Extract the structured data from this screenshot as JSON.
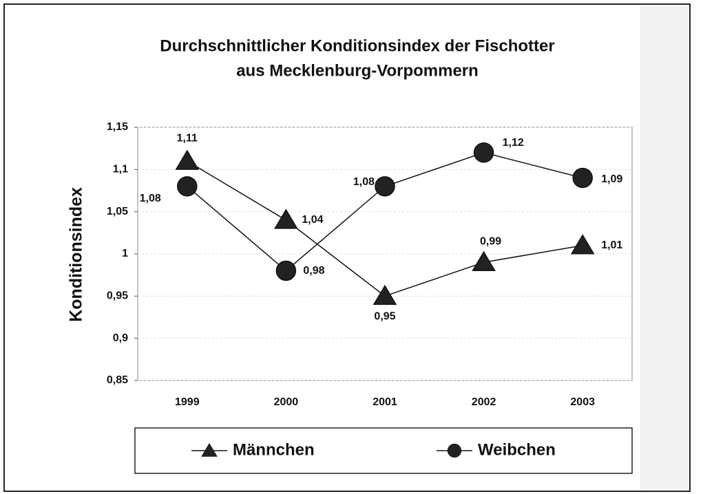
{
  "chart_data": {
    "type": "line",
    "title": [
      "Durchschnittlicher Konditionsindex der Fischotter",
      "aus Mecklenburg-Vorpommern"
    ],
    "y_label": "Konditionsindex",
    "categories": [
      "1999",
      "2000",
      "2001",
      "2002",
      "2003"
    ],
    "series": [
      {
        "name": "Männchen",
        "color": "#111111",
        "marker": "triangle",
        "values": [
          1.11,
          1.04,
          0.95,
          0.99,
          1.01
        ],
        "value_labels": [
          "1,11",
          "1,04",
          "0,95",
          "0,99",
          "1,01"
        ]
      },
      {
        "name": "Weibchen",
        "color": "#111111",
        "marker": "circle",
        "values": [
          1.08,
          0.98,
          1.08,
          1.12,
          1.09
        ],
        "value_labels": [
          "1,08",
          "0,98",
          "1,08",
          "1,12",
          "1,09"
        ]
      }
    ],
    "ylim": [
      0.85,
      1.15
    ],
    "yticks": [
      {
        "value": 0.85,
        "label": "0,85"
      },
      {
        "value": 0.9,
        "label": "0,9"
      },
      {
        "value": 0.95,
        "label": "0,95"
      },
      1,
      {
        "value": 1.05,
        "label": "1,05"
      },
      {
        "value": 1.1,
        "label": "1,1"
      },
      {
        "value": 1.15,
        "label": "1,15"
      }
    ],
    "grid": true,
    "legend": "bottom"
  }
}
